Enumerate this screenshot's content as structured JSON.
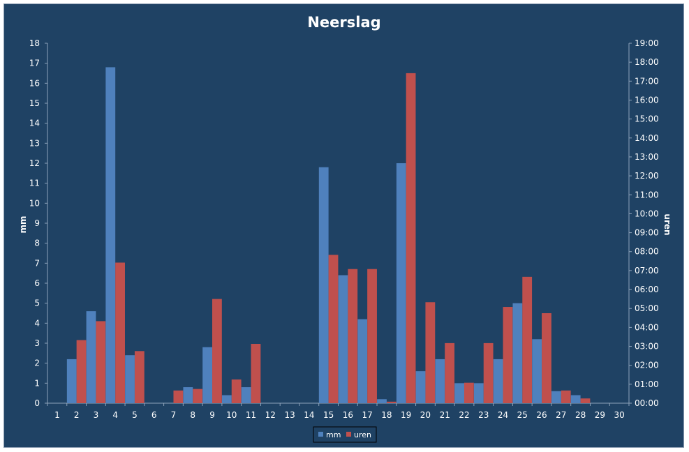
{
  "chart_data": {
    "type": "bar",
    "title": "Neerslag",
    "xlabel": "",
    "ylabel": "mm",
    "y2label": "uren",
    "categories": [
      "1",
      "2",
      "3",
      "4",
      "5",
      "6",
      "7",
      "8",
      "9",
      "10",
      "11",
      "12",
      "13",
      "14",
      "15",
      "16",
      "17",
      "18",
      "19",
      "20",
      "21",
      "22",
      "23",
      "24",
      "25",
      "26",
      "27",
      "28",
      "29",
      "30"
    ],
    "ylim": [
      0,
      18
    ],
    "y_ticks": [
      "0",
      "1",
      "2",
      "3",
      "4",
      "5",
      "6",
      "7",
      "8",
      "9",
      "10",
      "11",
      "12",
      "13",
      "14",
      "15",
      "16",
      "17",
      "18"
    ],
    "y2lim_hours": [
      0,
      19
    ],
    "y2_ticks": [
      "00:00",
      "01:00",
      "02:00",
      "03:00",
      "04:00",
      "05:00",
      "06:00",
      "07:00",
      "08:00",
      "09:00",
      "10:00",
      "11:00",
      "12:00",
      "13:00",
      "14:00",
      "15:00",
      "16:00",
      "17:00",
      "18:00",
      "19:00"
    ],
    "series": [
      {
        "name": "mm",
        "color": "#4f81bd",
        "axis": "left",
        "values": [
          0,
          2.2,
          4.6,
          16.8,
          2.4,
          0,
          0,
          0.8,
          2.8,
          0.4,
          0.8,
          0,
          0,
          0,
          11.8,
          6.4,
          4.2,
          0.2,
          12,
          1.6,
          2.2,
          1,
          1,
          2.2,
          5,
          3.2,
          0.6,
          0.4,
          0,
          0
        ]
      },
      {
        "name": "uren",
        "color": "#c0504d",
        "axis": "right",
        "values": [
          0,
          3.33,
          4.33,
          7.42,
          2.75,
          0,
          0.67,
          0.75,
          5.5,
          1.25,
          3.13,
          0,
          0,
          0,
          7.83,
          7.08,
          7.08,
          0.08,
          17.42,
          5.33,
          3.17,
          1.08,
          3.17,
          5.08,
          6.67,
          4.75,
          0.67,
          0.25,
          0,
          0
        ]
      }
    ],
    "grid": false,
    "legend_position": "bottom"
  }
}
